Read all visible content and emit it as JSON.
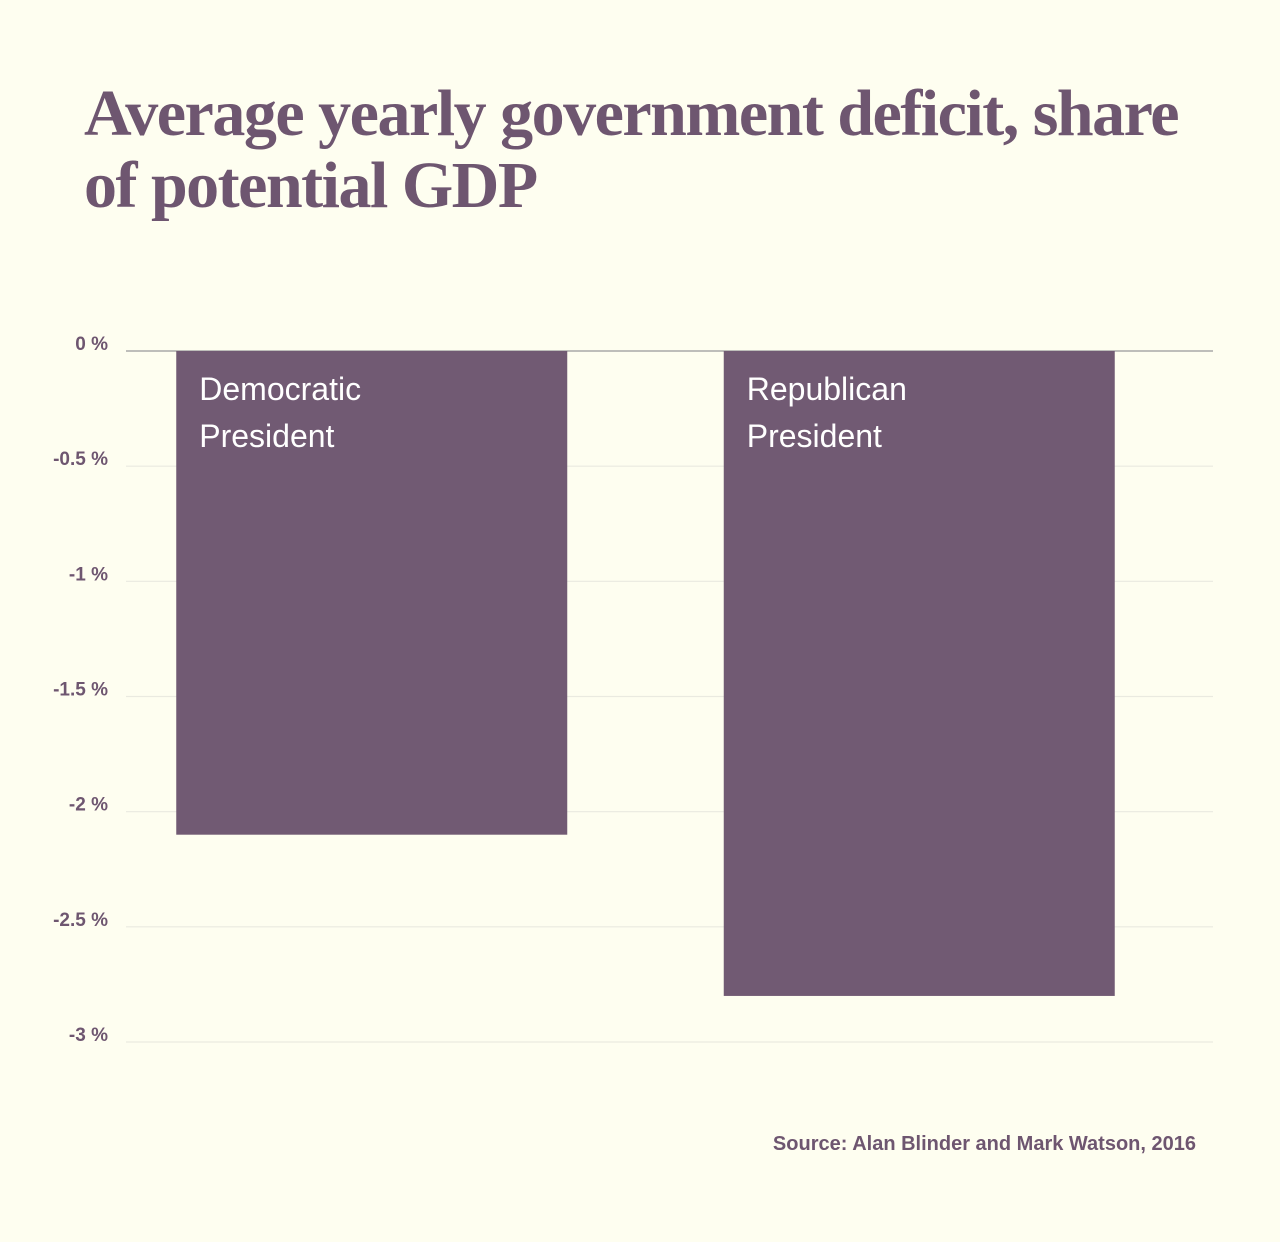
{
  "title": "Average yearly government deficit, share of potential GDP",
  "source": "Source: Alan Blinder and Mark Watson, 2016",
  "colors": {
    "background": "#FEFEF0",
    "bar": "#715A73",
    "text": "#6E5670",
    "gridline": "#EAEAE0",
    "zero_line": "#A8A8A8"
  },
  "chart_data": {
    "type": "bar",
    "title": "Average yearly government deficit, share of potential GDP",
    "categories": [
      "Democratic President",
      "Republican President"
    ],
    "category_label_lines": [
      [
        "Democratic",
        "President"
      ],
      [
        "Republican",
        "President"
      ]
    ],
    "values": [
      -2.1,
      -2.8
    ],
    "unit": "%",
    "xlabel": "",
    "ylabel": "",
    "ylim": [
      -3,
      0
    ],
    "yticks": [
      0,
      -0.5,
      -1,
      -1.5,
      -2,
      -2.5,
      -3
    ],
    "ytick_labels": [
      "0 %",
      "-0.5 %",
      "-1 %",
      "-1.5 %",
      "-2 %",
      "-2.5 %",
      "-3 %"
    ],
    "grid": true,
    "legend": "none",
    "source": "Source: Alan Blinder and Mark Watson, 2016"
  }
}
